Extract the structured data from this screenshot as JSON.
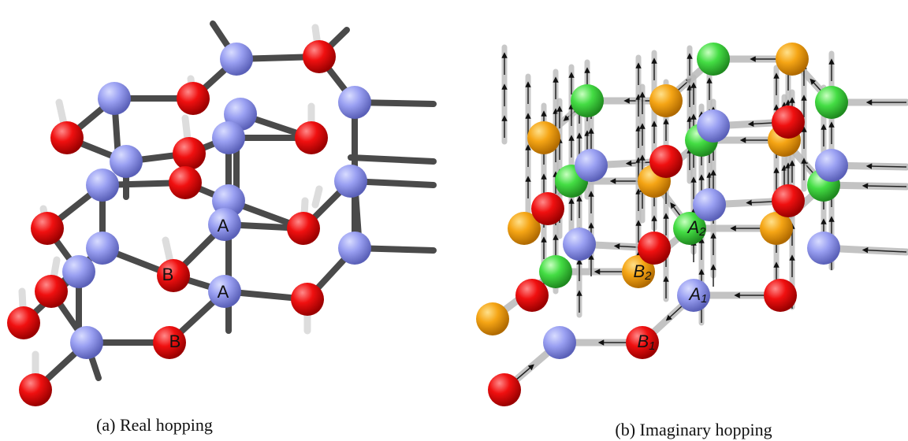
{
  "panels": [
    {
      "labels": [
        {
          "letter": "A"
        },
        {
          "letter": "A"
        },
        {
          "letter": "B"
        },
        {
          "letter": "B"
        }
      ],
      "caption": "(a) Real hopping"
    },
    {
      "labels": [
        {
          "letter": "A",
          "subscript": "2"
        },
        {
          "letter": "B",
          "subscript": "2"
        },
        {
          "letter": "A",
          "subscript": "1"
        },
        {
          "letter": "B",
          "subscript": "1"
        }
      ],
      "caption": "(b) Imaginary hopping"
    }
  ]
}
